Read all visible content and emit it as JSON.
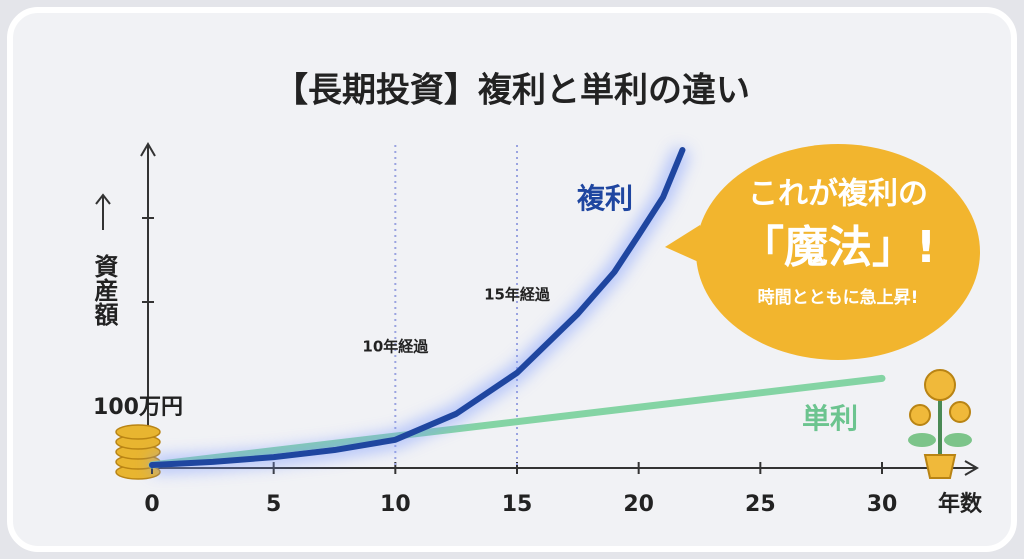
{
  "chart_data": {
    "type": "line",
    "title": "【長期投資】複利と単利の違い",
    "x_label": "年数",
    "y_label": "資産額",
    "start_label": "100万円",
    "xlim": [
      0,
      30
    ],
    "xticks": [
      0,
      5,
      10,
      15,
      20,
      25,
      30
    ],
    "ylim": [
      100,
      500
    ],
    "series": [
      {
        "name": "複利",
        "color": "#1f46a0",
        "x": [
          0,
          2.5,
          5,
          7.5,
          10,
          12.5,
          15,
          17.5,
          19,
          20,
          21,
          21.8
        ],
        "values": [
          100,
          104,
          110,
          119,
          132,
          165,
          217,
          292,
          345,
          392,
          440,
          500
        ]
      },
      {
        "name": "単利",
        "color": "#84d4a4",
        "x": [
          0,
          30
        ],
        "values": [
          100,
          210
        ]
      }
    ],
    "markers": [
      {
        "x": 10,
        "label": "10年経過"
      },
      {
        "x": 15,
        "label": "15年経過"
      }
    ],
    "callout": [
      "これが複利の",
      "「魔法」!",
      "時間とともに急上昇!"
    ]
  }
}
